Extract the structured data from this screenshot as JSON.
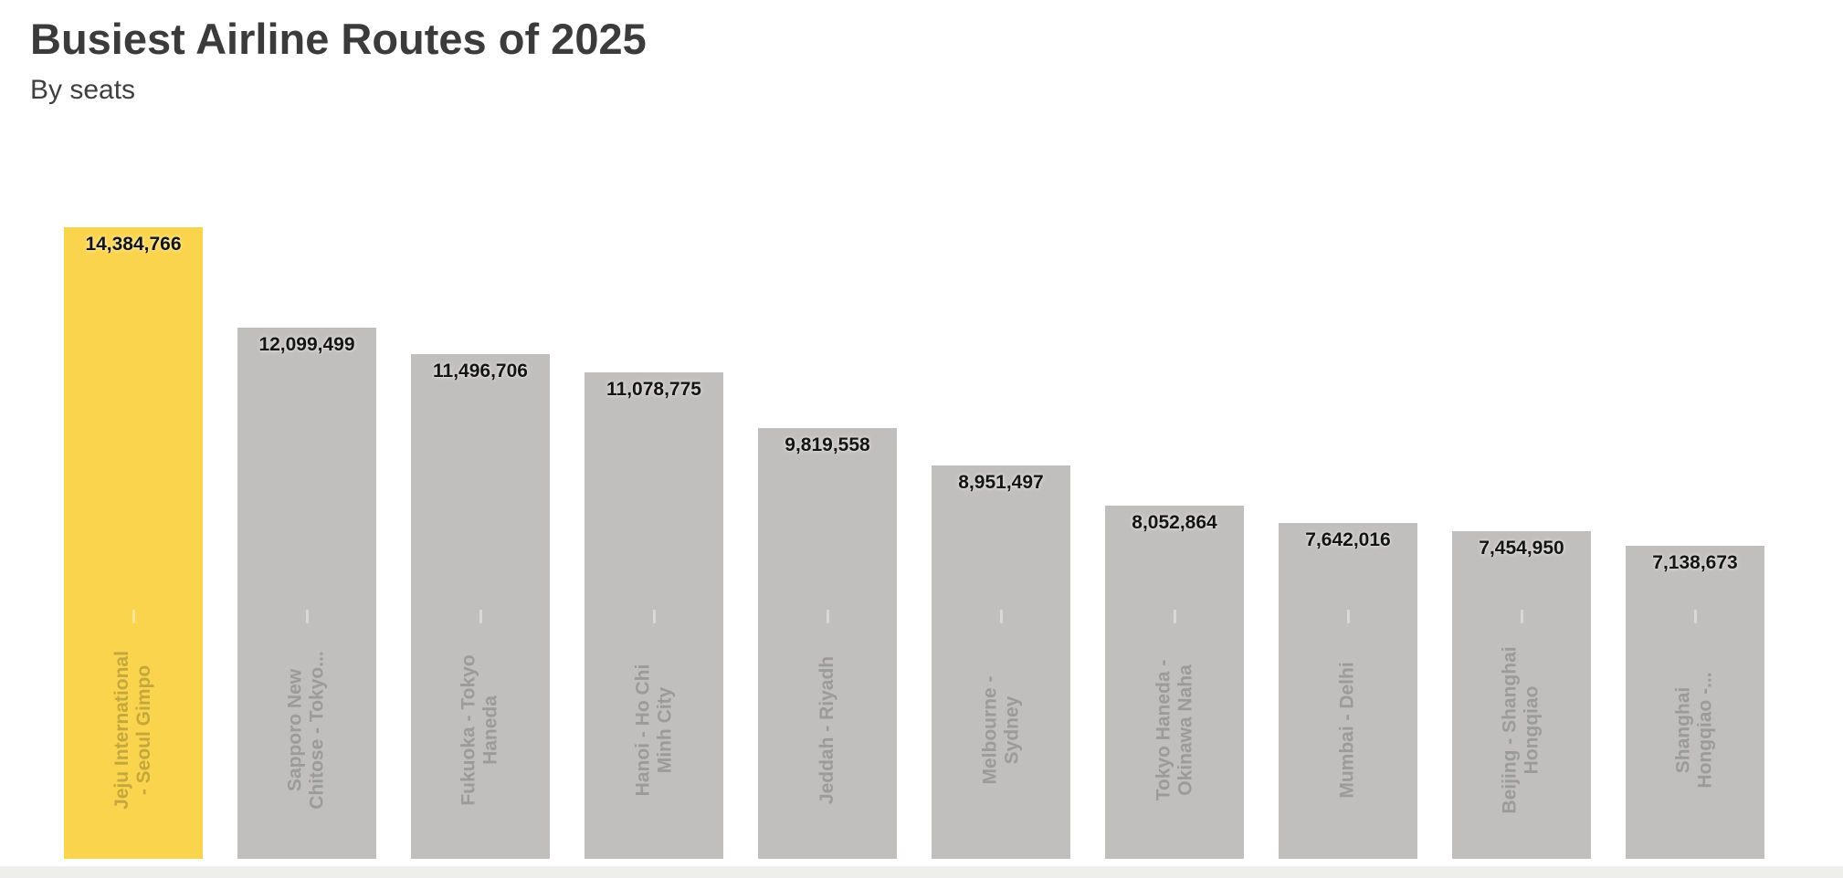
{
  "header": {
    "title": "Busiest Airline Routes of 2025",
    "subtitle": "By seats"
  },
  "chart_data": {
    "type": "bar",
    "orientation": "vertical",
    "title": "Busiest Airline Routes of 2025",
    "subtitle": "By seats",
    "unit": "seats",
    "grid": false,
    "legend": "none",
    "value_labels_position": "inside-top",
    "category_labels_position": "inside-bottom-rotated-90",
    "ylim": [
      0,
      14384766
    ],
    "highlight_index": 0,
    "categories": [
      "Jeju International - Seoul Gimpo",
      "Sapporo New Chitose - Tokyo...",
      "Fukuoka - Tokyo Haneda",
      "Hanoi - Ho Chi Minh City",
      "Jeddah - Riyadh",
      "Melbourne - Sydney",
      "Tokyo Haneda - Okinawa Naha",
      "Mumbai - Delhi",
      "Beijing - Shanghai Hongqiao",
      "Shanghai Hongqiao -..."
    ],
    "category_label_lines": [
      [
        "Jeju International",
        "- Seoul Gimpo"
      ],
      [
        "Sapporo New",
        "Chitose - Tokyo..."
      ],
      [
        "Fukuoka - Tokyo",
        "Haneda"
      ],
      [
        "Hanoi - Ho Chi",
        "Minh City"
      ],
      [
        "Jeddah - Riyadh"
      ],
      [
        "Melbourne -",
        "Sydney"
      ],
      [
        "Tokyo Haneda -",
        "Okinawa Naha"
      ],
      [
        "Mumbai - Delhi"
      ],
      [
        "Beijing - Shanghai",
        "Hongqiao"
      ],
      [
        "Shanghai",
        "Hongqiao -..."
      ]
    ],
    "values": [
      14384766,
      12099499,
      11496706,
      11078775,
      9819558,
      8951497,
      8052864,
      7642016,
      7454950,
      7138673
    ],
    "value_labels": [
      "14,384,766",
      "12,099,499",
      "11,496,706",
      "11,078,775",
      "9,819,558",
      "8,951,497",
      "8,052,864",
      "7,642,016",
      "7,454,950",
      "7,138,673"
    ],
    "colors": {
      "highlight_bar": "#fbd44d",
      "bar": "#c0bfbd",
      "value_text": "#141414",
      "category_text": "#9b9b99",
      "category_text_on_highlight": "#c4a83e",
      "title_text": "#3b3b3b",
      "subtitle_text": "#3f3f3f",
      "background": "#ffffff",
      "bottom_strip": "#eeeeec"
    }
  }
}
